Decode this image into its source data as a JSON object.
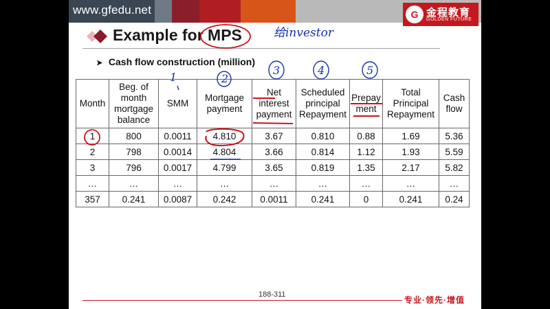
{
  "header": {
    "url": "www.gfedu.net",
    "logo_mark": "G",
    "logo_cn": "金程教育",
    "logo_en": "GOLDEN FUTURE"
  },
  "slide": {
    "title": "Example for MPS",
    "subtitle": "Cash flow construction (million)",
    "bullet_icon": "arrow-bullet-icon"
  },
  "table": {
    "columns": [
      "Month",
      "Beg. of month mortgage balance",
      "SMM",
      "Mortgage payment",
      "Net interest payment",
      "Scheduled principal Repayment",
      "Prepayment",
      "Total Principal Repayment",
      "Cash flow"
    ],
    "rows": [
      [
        "1",
        "800",
        "0.0011",
        "4.810",
        "3.67",
        "0.810",
        "0.88",
        "1.69",
        "5.36"
      ],
      [
        "2",
        "798",
        "0.0014",
        "4.804",
        "3.66",
        "0.814",
        "1.12",
        "1.93",
        "5.59"
      ],
      [
        "3",
        "796",
        "0.0017",
        "4.799",
        "3.65",
        "0.819",
        "1.35",
        "2.17",
        "5.82"
      ],
      [
        "…",
        "…",
        "…",
        "…",
        "…",
        "…",
        "…",
        "…",
        "…"
      ],
      [
        "357",
        "0.241",
        "0.0087",
        "0.242",
        "0.0011",
        "0.241",
        "0",
        "0.241",
        "0.24"
      ]
    ]
  },
  "annotations": {
    "handwritten_note": "给investor",
    "circled_numbers": [
      "1",
      "2",
      "3",
      "4",
      "5"
    ]
  },
  "footer": {
    "page": "188-311",
    "slogan": "专业·领先·增值"
  },
  "colors": {
    "brand_red": "#c4181e",
    "ink_red": "#d0101a",
    "ink_blue": "#1530b0",
    "title_diamond": "#8b1a2a"
  }
}
